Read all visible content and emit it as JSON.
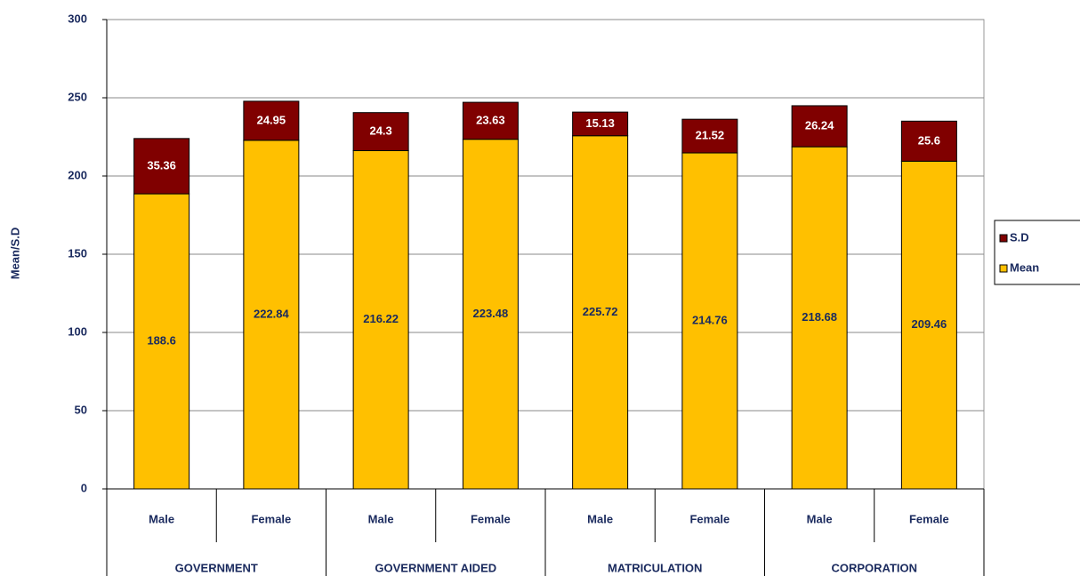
{
  "chart_data": {
    "type": "stacked_bar",
    "y_label": "Mean/S.D",
    "categories": [
      "Male",
      "Female",
      "Male",
      "Female",
      "Male",
      "Female",
      "Male",
      "Female"
    ],
    "groups": [
      "GOVERNMENT",
      "GOVERNMENT AIDED",
      "MATRICULATION",
      "CORPORATION"
    ],
    "series": [
      {
        "name": "Mean",
        "color": "#ffc000",
        "values": [
          188.6,
          222.84,
          216.22,
          223.48,
          225.72,
          214.76,
          218.68,
          209.46
        ]
      },
      {
        "name": "S.D",
        "color": "#800000",
        "values": [
          35.36,
          24.95,
          24.3,
          23.63,
          15.13,
          21.52,
          26.24,
          25.6
        ]
      }
    ],
    "ylim": [
      0,
      300
    ],
    "yticks": [
      0,
      50,
      100,
      150,
      200,
      250,
      300
    ],
    "grid": true,
    "legend": "right"
  }
}
